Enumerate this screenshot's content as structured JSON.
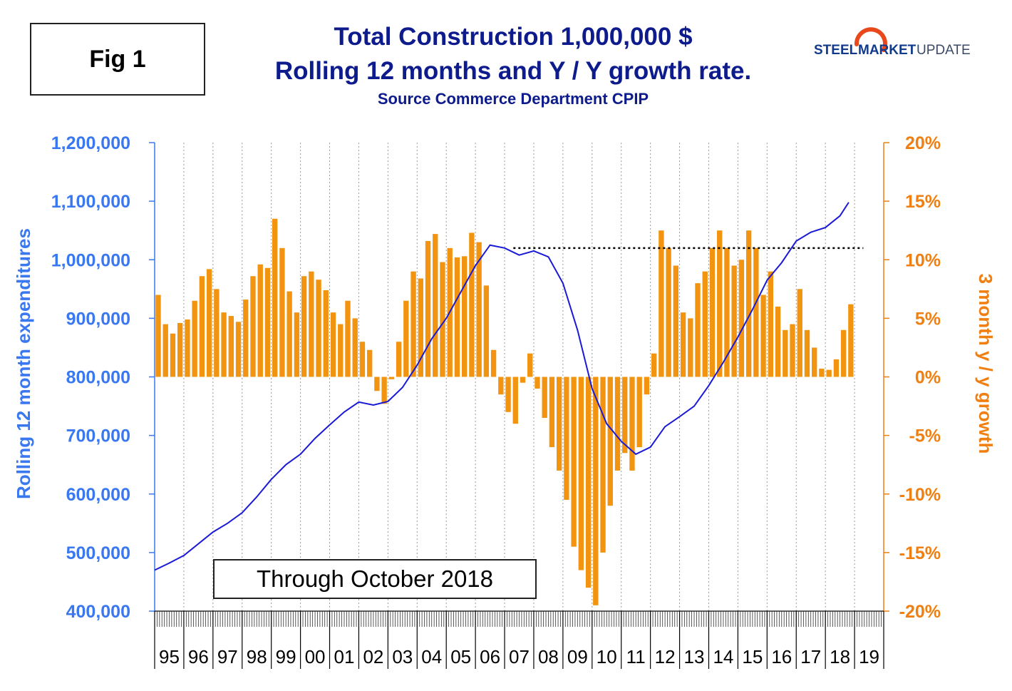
{
  "figure_label": "Fig 1",
  "title_line1": "Total Construction 1,000,000 $",
  "title_line2": "Rolling 12 months and Y / Y growth rate.",
  "subtitle": "Source Commerce Department CPIP",
  "logo": {
    "word1": "STEEL",
    "word2": "MARKET",
    "word3": "UPDATE",
    "colors": {
      "word1": "#123a8c",
      "word2": "#123a8c",
      "word3": "#3a4a66",
      "swoosh": "#e8481c"
    }
  },
  "note": "Through October 2018",
  "colors": {
    "line": "#1a1ad6",
    "bars": "#f2940f",
    "left_axis": "#3a78f2",
    "right_axis": "#f07f12",
    "title": "#0d1b8c"
  },
  "chart_data": {
    "type": "bar+line",
    "xlabel": "",
    "x_ticks": [
      "95",
      "96",
      "97",
      "98",
      "99",
      "00",
      "01",
      "02",
      "03",
      "04",
      "05",
      "06",
      "07",
      "08",
      "09",
      "10",
      "11",
      "12",
      "13",
      "14",
      "15",
      "16",
      "17",
      "18",
      "19"
    ],
    "left_axis": {
      "label": "Rolling 12 month expenditures",
      "ylim": [
        400000,
        1200000
      ],
      "ticks": [
        "400,000",
        "500,000",
        "600,000",
        "700,000",
        "800,000",
        "900,000",
        "1,000,000",
        "1,100,000",
        "1,200,000"
      ]
    },
    "right_axis": {
      "label": "3 month y / y growth",
      "ylim": [
        -20,
        20
      ],
      "ticks": [
        "-20%",
        "-15%",
        "-10%",
        "-5%",
        "0%",
        "5%",
        "10%",
        "15%",
        "20%"
      ]
    },
    "reference_line": {
      "style": "dotted",
      "value": 1020000,
      "x_start": 2007.3,
      "x_end": 2019.3
    },
    "series": [
      {
        "type": "line",
        "axis": "left",
        "points": [
          [
            1995.0,
            470000
          ],
          [
            1995.5,
            482000
          ],
          [
            1996.0,
            495000
          ],
          [
            1996.5,
            515000
          ],
          [
            1997.0,
            535000
          ],
          [
            1997.5,
            550000
          ],
          [
            1998.0,
            568000
          ],
          [
            1998.5,
            595000
          ],
          [
            1999.0,
            625000
          ],
          [
            1999.5,
            650000
          ],
          [
            2000.0,
            668000
          ],
          [
            2000.5,
            695000
          ],
          [
            2001.0,
            718000
          ],
          [
            2001.5,
            740000
          ],
          [
            2002.0,
            757000
          ],
          [
            2002.5,
            752000
          ],
          [
            2003.0,
            758000
          ],
          [
            2003.5,
            782000
          ],
          [
            2004.0,
            820000
          ],
          [
            2004.5,
            865000
          ],
          [
            2005.0,
            900000
          ],
          [
            2005.5,
            945000
          ],
          [
            2006.0,
            990000
          ],
          [
            2006.5,
            1025000
          ],
          [
            2007.0,
            1020000
          ],
          [
            2007.5,
            1008000
          ],
          [
            2008.0,
            1015000
          ],
          [
            2008.5,
            1005000
          ],
          [
            2009.0,
            960000
          ],
          [
            2009.5,
            880000
          ],
          [
            2010.0,
            780000
          ],
          [
            2010.5,
            720000
          ],
          [
            2011.0,
            690000
          ],
          [
            2011.5,
            668000
          ],
          [
            2012.0,
            680000
          ],
          [
            2012.5,
            715000
          ],
          [
            2013.0,
            732000
          ],
          [
            2013.5,
            750000
          ],
          [
            2014.0,
            785000
          ],
          [
            2014.5,
            825000
          ],
          [
            2015.0,
            868000
          ],
          [
            2015.5,
            915000
          ],
          [
            2016.0,
            965000
          ],
          [
            2016.5,
            995000
          ],
          [
            2017.0,
            1032000
          ],
          [
            2017.5,
            1047000
          ],
          [
            2018.0,
            1055000
          ],
          [
            2018.5,
            1075000
          ],
          [
            2018.8,
            1098000
          ]
        ]
      },
      {
        "type": "bar",
        "axis": "right",
        "points": [
          [
            1995.0,
            7
          ],
          [
            1995.25,
            4.5
          ],
          [
            1995.5,
            3.7
          ],
          [
            1995.75,
            4.6
          ],
          [
            1996.0,
            4.9
          ],
          [
            1996.25,
            6.5
          ],
          [
            1996.5,
            8.6
          ],
          [
            1996.75,
            9.2
          ],
          [
            1997.0,
            7.5
          ],
          [
            1997.25,
            5.5
          ],
          [
            1997.5,
            5.2
          ],
          [
            1997.75,
            4.7
          ],
          [
            1998.0,
            6.6
          ],
          [
            1998.25,
            8.6
          ],
          [
            1998.5,
            9.6
          ],
          [
            1998.75,
            9.3
          ],
          [
            1999.0,
            13.5
          ],
          [
            1999.25,
            11.0
          ],
          [
            1999.5,
            7.3
          ],
          [
            1999.75,
            5.5
          ],
          [
            2000.0,
            8.6
          ],
          [
            2000.25,
            9.0
          ],
          [
            2000.5,
            8.3
          ],
          [
            2000.75,
            7.4
          ],
          [
            2001.0,
            5.5
          ],
          [
            2001.25,
            4.5
          ],
          [
            2001.5,
            6.5
          ],
          [
            2001.75,
            5.0
          ],
          [
            2002.0,
            3.0
          ],
          [
            2002.25,
            2.3
          ],
          [
            2002.5,
            -1.2
          ],
          [
            2002.75,
            -2.3
          ],
          [
            2003.0,
            -0.2
          ],
          [
            2003.25,
            3.0
          ],
          [
            2003.5,
            6.5
          ],
          [
            2003.75,
            9.0
          ],
          [
            2004.0,
            8.4
          ],
          [
            2004.25,
            11.6
          ],
          [
            2004.5,
            12.2
          ],
          [
            2004.75,
            9.8
          ],
          [
            2005.0,
            11.0
          ],
          [
            2005.25,
            10.2
          ],
          [
            2005.5,
            10.3
          ],
          [
            2005.75,
            12.3
          ],
          [
            2006.0,
            11.5
          ],
          [
            2006.25,
            7.8
          ],
          [
            2006.5,
            2.3
          ],
          [
            2006.75,
            -1.5
          ],
          [
            2007.0,
            -3.0
          ],
          [
            2007.25,
            -4.0
          ],
          [
            2007.5,
            -0.5
          ],
          [
            2007.75,
            2.0
          ],
          [
            2008.0,
            -1.0
          ],
          [
            2008.25,
            -3.5
          ],
          [
            2008.5,
            -6.0
          ],
          [
            2008.75,
            -8.0
          ],
          [
            2009.0,
            -10.5
          ],
          [
            2009.25,
            -14.5
          ],
          [
            2009.5,
            -16.5
          ],
          [
            2009.75,
            -18.0
          ],
          [
            2010.0,
            -19.5
          ],
          [
            2010.25,
            -15.0
          ],
          [
            2010.5,
            -11.0
          ],
          [
            2010.75,
            -8.0
          ],
          [
            2011.0,
            -6.5
          ],
          [
            2011.25,
            -8.0
          ],
          [
            2011.5,
            -6.0
          ],
          [
            2011.75,
            -1.5
          ],
          [
            2012.0,
            2.0
          ],
          [
            2012.25,
            12.5
          ],
          [
            2012.5,
            11.0
          ],
          [
            2012.75,
            9.5
          ],
          [
            2013.0,
            5.5
          ],
          [
            2013.25,
            5.0
          ],
          [
            2013.5,
            8.0
          ],
          [
            2013.75,
            9.0
          ],
          [
            2014.0,
            11.0
          ],
          [
            2014.25,
            12.5
          ],
          [
            2014.5,
            11.0
          ],
          [
            2014.75,
            9.5
          ],
          [
            2015.0,
            10.0
          ],
          [
            2015.25,
            12.5
          ],
          [
            2015.5,
            11.0
          ],
          [
            2015.75,
            7.0
          ],
          [
            2016.0,
            9.0
          ],
          [
            2016.25,
            6.0
          ],
          [
            2016.5,
            4.0
          ],
          [
            2016.75,
            4.5
          ],
          [
            2017.0,
            7.5
          ],
          [
            2017.25,
            4.0
          ],
          [
            2017.5,
            2.5
          ],
          [
            2017.75,
            0.7
          ],
          [
            2018.0,
            0.6
          ],
          [
            2018.25,
            1.5
          ],
          [
            2018.5,
            4.0
          ],
          [
            2018.75,
            6.2
          ]
        ]
      }
    ],
    "legend": "none",
    "grid": "vertical dotted per year"
  }
}
